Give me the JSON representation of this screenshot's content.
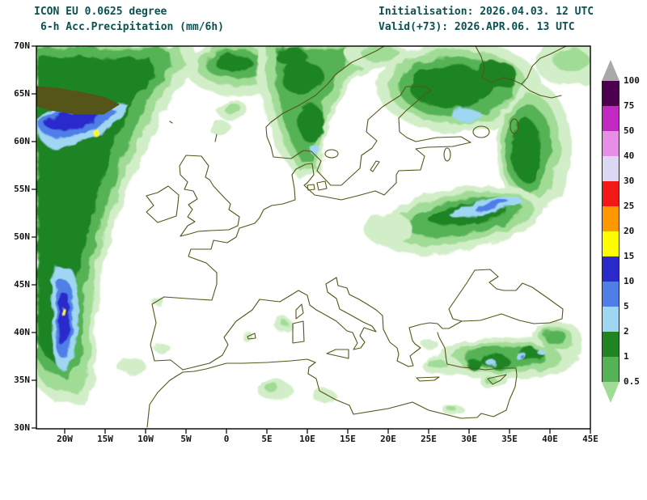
{
  "header": {
    "model": "ICON EU 0.0625 degree",
    "parameter": "6-h Acc.Precipitation (mm/6h)",
    "initialisation": "Initialisation: 2026.04.03. 12 UTC",
    "valid": "Valid(+73): 2026.APR.06. 13 UTC"
  },
  "colors": {
    "header_text": "#0b5151",
    "axis_text": "#141414",
    "coastline": "#55551a",
    "frame": "#000000",
    "background": "#ffffff"
  },
  "axes": {
    "lat": [
      "70N",
      "65N",
      "60N",
      "55N",
      "50N",
      "45N",
      "40N",
      "35N",
      "30N"
    ],
    "lon": [
      "20W",
      "15W",
      "10W",
      "5W",
      "0",
      "5E",
      "10E",
      "15E",
      "20E",
      "25E",
      "30E",
      "35E",
      "40E",
      "45E"
    ]
  },
  "colorbar": {
    "labels": [
      "100",
      "75",
      "50",
      "40",
      "30",
      "25",
      "20",
      "15",
      "10",
      "5",
      "2",
      "1",
      "0.5"
    ],
    "segment_colors_top_to_bottom": [
      "#4d004d",
      "#c228c2",
      "#e78fe7",
      "#dcd8f4",
      "#f21818",
      "#ff9800",
      "#fdfd00",
      "#2929cc",
      "#4f7fe6",
      "#9fd6f2",
      "#1f8421",
      "#55b355"
    ],
    "arrow_top_color": "#a9a9a9",
    "arrow_bottom_color": "#a0dc96"
  },
  "palette": {
    "trace": "#d2eec8",
    "p05": "#a0dc96",
    "p1": "#55b355",
    "p2": "#1f8421",
    "p5": "#9fd6f2",
    "p10": "#4f7fe6",
    "p15": "#2929cc",
    "p20": "#fdfd00"
  },
  "precipitation_features": [
    {
      "area": "North Atlantic band from Iceland south to 35N near 20W",
      "intensity": "wide green band with blue cores 5-15 mm and yellow specks 15-20 mm"
    },
    {
      "area": "Norwegian Sea blob at top centre",
      "intensity": "0.5-5 mm"
    },
    {
      "area": "Norway and central Scandinavia",
      "intensity": "1-5 mm with dark green cores"
    },
    {
      "area": "Finland / NW Russia arc hooking southwest to Belarus-Ukraine",
      "intensity": "1-5 mm with 2-10 mm blue streaks"
    },
    {
      "area": "Southern Turkey and eastern Mediterranean",
      "intensity": "1-5 mm with 5-10 mm spots"
    },
    {
      "area": "Scattered light patches (Tunisia, Sicily, Sardinia, Aegean, off Morocco)",
      "intensity": "below 1 mm"
    }
  ]
}
